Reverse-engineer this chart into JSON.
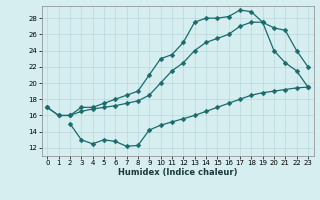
{
  "title": "",
  "xlabel": "Humidex (Indice chaleur)",
  "bg_color": "#d6eef0",
  "grid_color": "#b8d8dc",
  "line_color": "#1a6b6b",
  "xlim": [
    -0.5,
    23.5
  ],
  "ylim": [
    11,
    29.5
  ],
  "yticks": [
    12,
    14,
    16,
    18,
    20,
    22,
    24,
    26,
    28
  ],
  "xticks": [
    0,
    1,
    2,
    3,
    4,
    5,
    6,
    7,
    8,
    9,
    10,
    11,
    12,
    13,
    14,
    15,
    16,
    17,
    18,
    19,
    20,
    21,
    22,
    23
  ],
  "line1_x": [
    0,
    1,
    2,
    3,
    4,
    5,
    6,
    7,
    8,
    9,
    10,
    11,
    12,
    13,
    14,
    15,
    16,
    17,
    18,
    19,
    20,
    21,
    22,
    23
  ],
  "line1_y": [
    17.0,
    16.0,
    16.0,
    17.0,
    17.0,
    17.5,
    18.0,
    18.5,
    19.0,
    21.0,
    23.0,
    23.5,
    25.0,
    27.5,
    28.0,
    28.0,
    28.2,
    29.0,
    28.8,
    27.5,
    24.0,
    22.5,
    21.5,
    19.5
  ],
  "line2_x": [
    0,
    1,
    2,
    3,
    4,
    5,
    6,
    7,
    8,
    9,
    10,
    11,
    12,
    13,
    14,
    15,
    16,
    17,
    18,
    19,
    20,
    21,
    22,
    23
  ],
  "line2_y": [
    17.0,
    16.0,
    16.0,
    16.5,
    16.8,
    17.0,
    17.2,
    17.5,
    17.8,
    18.5,
    20.0,
    21.5,
    22.5,
    24.0,
    25.0,
    25.5,
    26.0,
    27.0,
    27.5,
    27.5,
    26.8,
    26.5,
    24.0,
    22.0
  ],
  "line3_x": [
    2,
    3,
    4,
    5,
    6,
    7,
    8,
    9,
    10,
    11,
    12,
    13,
    14,
    15,
    16,
    17,
    18,
    19,
    20,
    21,
    22,
    23
  ],
  "line3_y": [
    15.0,
    13.0,
    12.5,
    13.0,
    12.8,
    12.2,
    12.3,
    14.2,
    14.8,
    15.2,
    15.6,
    16.0,
    16.5,
    17.0,
    17.5,
    18.0,
    18.5,
    18.8,
    19.0,
    19.2,
    19.4,
    19.5
  ]
}
